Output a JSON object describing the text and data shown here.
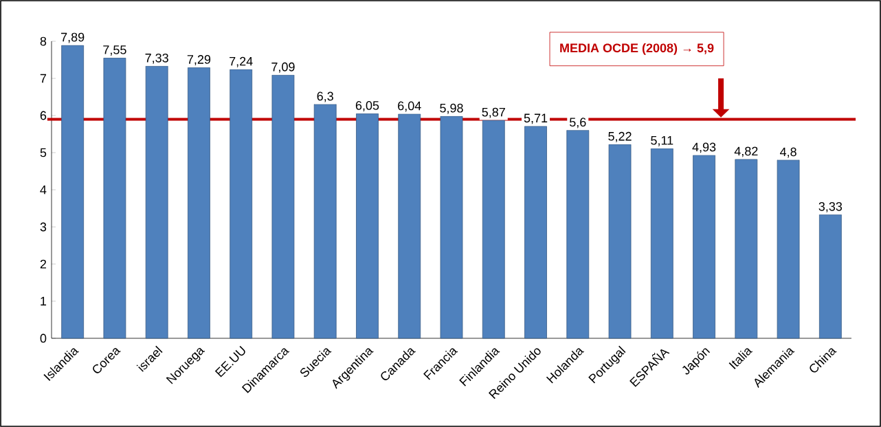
{
  "chart_data": {
    "type": "bar",
    "categories": [
      "Islandia",
      "Corea",
      "israel",
      "Noruega",
      "EE.UU",
      "Dinamarca",
      "Suecia",
      "Argentina",
      "Canada",
      "Francia",
      "Finlandia",
      "Reino Unido",
      "Holanda",
      "Portugal",
      "ESPAÑA",
      "Japón",
      "Italia",
      "Alemania",
      "China"
    ],
    "values": [
      7.89,
      7.55,
      7.33,
      7.29,
      7.24,
      7.09,
      6.3,
      6.05,
      6.04,
      5.98,
      5.87,
      5.71,
      5.6,
      5.22,
      5.11,
      4.93,
      4.82,
      4.8,
      3.33
    ],
    "value_labels": [
      "7,89",
      "7,55",
      "7,33",
      "7,29",
      "7,24",
      "7,09",
      "6,3",
      "6,05",
      "6,04",
      "5,98",
      "5,87",
      "5,71",
      "5,6",
      "5,22",
      "5,11",
      "4,93",
      "4,82",
      "4,8",
      "3,33"
    ],
    "color": "#4f81bd",
    "ylim": [
      0,
      8
    ],
    "yticks": [
      0,
      1,
      2,
      3,
      4,
      5,
      6,
      7,
      8
    ],
    "ref_lines": [
      {
        "axis": "y",
        "value": 5.9,
        "label": "MEDIA OCDE (2008) → **5,9**",
        "color": "#c00000"
      }
    ]
  }
}
